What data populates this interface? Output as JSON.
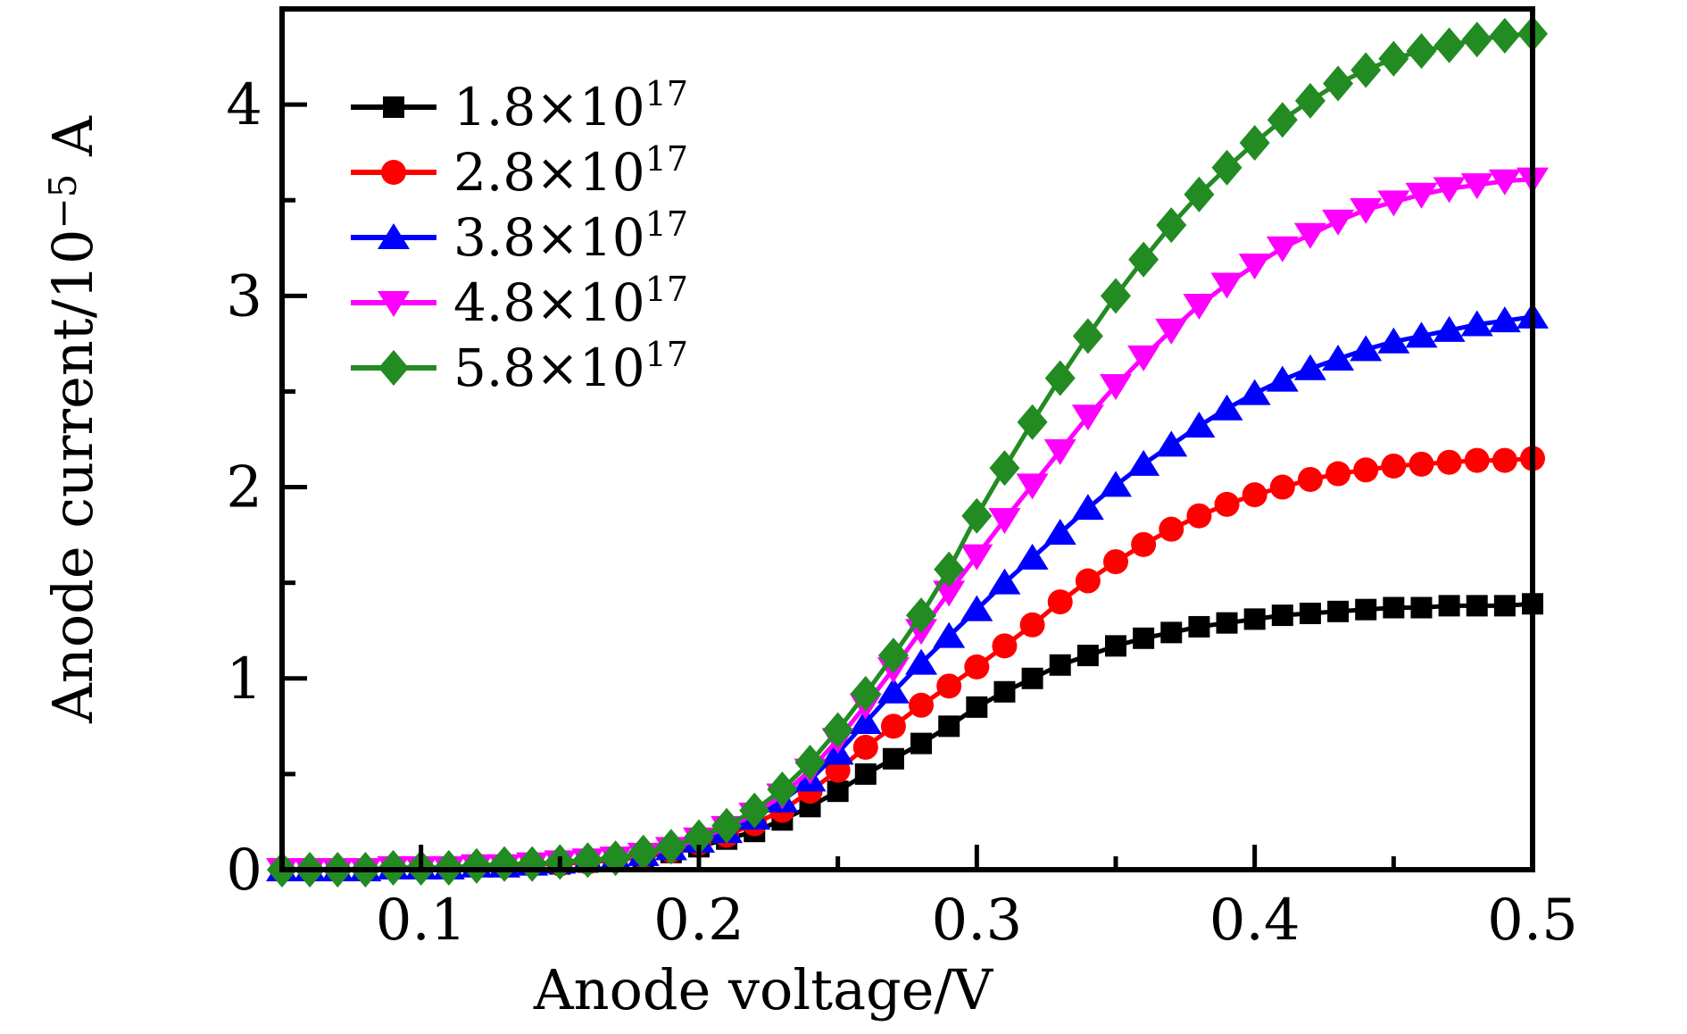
{
  "figure": {
    "background": "#ffffff",
    "frame_color": "#000000"
  },
  "chart_data": {
    "type": "line",
    "title": "",
    "xlabel": "Anode voltage/V",
    "ylabel": "Anode current/10−5 A",
    "ylabel_parts": {
      "prefix": "Anode current/10",
      "superscript": "−5",
      "suffix": " A"
    },
    "xlim": [
      0.05,
      0.5
    ],
    "ylim": [
      0,
      4.5
    ],
    "grid": false,
    "legend_position": "upper-left",
    "xticks_major": {
      "values": [
        0.1,
        0.2,
        0.3,
        0.4,
        0.5
      ],
      "labels": [
        "0.1",
        "0.2",
        "0.3",
        "0.4",
        "0.5"
      ]
    },
    "xticks_minor": [
      0.15,
      0.25,
      0.35,
      0.45
    ],
    "yticks_major": {
      "values": [
        0,
        1,
        2,
        3,
        4
      ],
      "labels": [
        "0",
        "1",
        "2",
        "3",
        "4"
      ]
    },
    "yticks_minor": [
      0.5,
      1.5,
      2.5,
      3.5
    ],
    "x": [
      0.05,
      0.06,
      0.07,
      0.08,
      0.09,
      0.1,
      0.11,
      0.12,
      0.13,
      0.14,
      0.15,
      0.16,
      0.17,
      0.18,
      0.19,
      0.2,
      0.21,
      0.22,
      0.23,
      0.24,
      0.25,
      0.26,
      0.27,
      0.28,
      0.29,
      0.3,
      0.31,
      0.32,
      0.33,
      0.34,
      0.35,
      0.36,
      0.37,
      0.38,
      0.39,
      0.4,
      0.41,
      0.42,
      0.43,
      0.44,
      0.45,
      0.46,
      0.47,
      0.48,
      0.49,
      0.5
    ],
    "series": [
      {
        "id": "1.8e17",
        "label_base": "1.8×10",
        "label_exp": "17",
        "label_text": "1.8×1017",
        "color": "#000000",
        "marker": "square",
        "values": [
          0.0,
          0.0,
          0.0,
          0.0,
          0.01,
          0.01,
          0.01,
          0.02,
          0.02,
          0.03,
          0.03,
          0.04,
          0.05,
          0.07,
          0.09,
          0.12,
          0.16,
          0.2,
          0.26,
          0.33,
          0.41,
          0.5,
          0.58,
          0.66,
          0.75,
          0.85,
          0.93,
          1.0,
          1.07,
          1.12,
          1.17,
          1.21,
          1.24,
          1.27,
          1.29,
          1.31,
          1.33,
          1.34,
          1.35,
          1.36,
          1.37,
          1.37,
          1.38,
          1.38,
          1.38,
          1.39
        ]
      },
      {
        "id": "2.8e17",
        "label_base": "2.8×10",
        "label_exp": "17",
        "label_text": "2.8×1017",
        "color": "#ff0000",
        "marker": "circle",
        "values": [
          0.0,
          0.0,
          0.0,
          0.0,
          0.01,
          0.01,
          0.01,
          0.02,
          0.02,
          0.03,
          0.03,
          0.04,
          0.05,
          0.07,
          0.1,
          0.14,
          0.18,
          0.24,
          0.31,
          0.41,
          0.52,
          0.64,
          0.75,
          0.86,
          0.96,
          1.06,
          1.17,
          1.28,
          1.4,
          1.51,
          1.61,
          1.7,
          1.78,
          1.85,
          1.91,
          1.96,
          2.0,
          2.04,
          2.07,
          2.09,
          2.11,
          2.12,
          2.13,
          2.14,
          2.14,
          2.15
        ]
      },
      {
        "id": "3.8e17",
        "label_base": "3.8×10",
        "label_exp": "17",
        "label_text": "3.8×1017",
        "color": "#0000ff",
        "marker": "triangle-up",
        "values": [
          0.0,
          0.0,
          0.0,
          0.0,
          0.01,
          0.01,
          0.01,
          0.02,
          0.02,
          0.03,
          0.04,
          0.05,
          0.06,
          0.08,
          0.11,
          0.15,
          0.2,
          0.27,
          0.36,
          0.47,
          0.61,
          0.77,
          0.93,
          1.08,
          1.22,
          1.36,
          1.5,
          1.63,
          1.76,
          1.89,
          2.01,
          2.12,
          2.22,
          2.32,
          2.41,
          2.49,
          2.56,
          2.62,
          2.67,
          2.72,
          2.76,
          2.79,
          2.82,
          2.85,
          2.87,
          2.89
        ]
      },
      {
        "id": "4.8e17",
        "label_base": "4.8×10",
        "label_exp": "17",
        "label_text": "4.8×1017",
        "color": "#ff00ff",
        "marker": "triangle-down",
        "values": [
          0.0,
          0.0,
          0.0,
          0.0,
          0.01,
          0.01,
          0.01,
          0.02,
          0.02,
          0.03,
          0.04,
          0.05,
          0.06,
          0.08,
          0.11,
          0.16,
          0.22,
          0.29,
          0.39,
          0.52,
          0.68,
          0.86,
          1.05,
          1.25,
          1.45,
          1.64,
          1.83,
          2.01,
          2.19,
          2.37,
          2.53,
          2.68,
          2.82,
          2.95,
          3.06,
          3.16,
          3.25,
          3.32,
          3.39,
          3.45,
          3.49,
          3.53,
          3.56,
          3.58,
          3.6,
          3.61
        ]
      },
      {
        "id": "5.8e17",
        "label_base": "5.8×10",
        "label_exp": "17",
        "label_text": "5.8×1017",
        "color": "#228b22",
        "marker": "diamond",
        "values": [
          0.0,
          0.0,
          0.0,
          0.0,
          0.01,
          0.01,
          0.01,
          0.02,
          0.03,
          0.03,
          0.04,
          0.05,
          0.06,
          0.09,
          0.12,
          0.17,
          0.23,
          0.31,
          0.42,
          0.56,
          0.73,
          0.92,
          1.12,
          1.33,
          1.57,
          1.85,
          2.1,
          2.34,
          2.57,
          2.79,
          3.0,
          3.19,
          3.37,
          3.53,
          3.67,
          3.8,
          3.92,
          4.02,
          4.11,
          4.18,
          4.24,
          4.28,
          4.31,
          4.34,
          4.36,
          4.37
        ]
      }
    ]
  }
}
